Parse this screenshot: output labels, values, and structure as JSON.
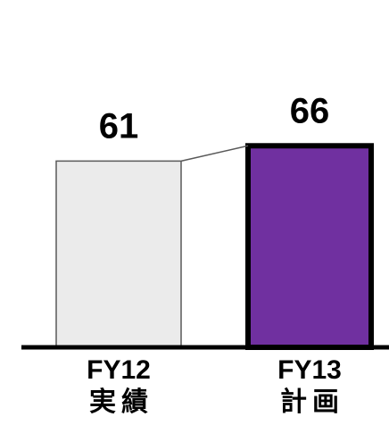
{
  "chart_data": {
    "type": "bar",
    "categories": [
      "FY12",
      "FY13"
    ],
    "category_sublabels": [
      "実績",
      "計画"
    ],
    "values": [
      61,
      66
    ],
    "data_labels": [
      "61",
      "66"
    ],
    "title": "",
    "xlabel": "",
    "ylabel": "",
    "grid": false,
    "legend": "none",
    "colors": {
      "bar_fill": [
        "#ebebeb",
        "#7030a0"
      ],
      "bar_stroke": [
        "#595959",
        "#000000"
      ],
      "axis": "#000000",
      "connector": "#595959"
    }
  }
}
